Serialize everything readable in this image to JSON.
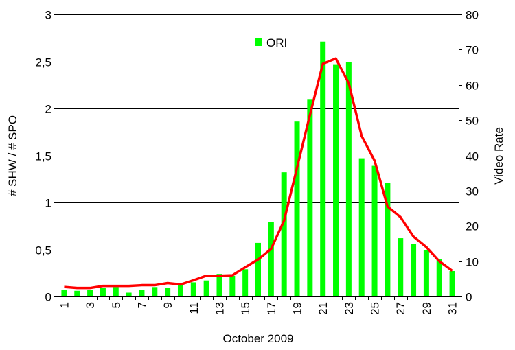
{
  "chart_data": {
    "type": "bar",
    "categories": [
      "1",
      "2",
      "3",
      "4",
      "5",
      "6",
      "7",
      "8",
      "9",
      "10",
      "11",
      "12",
      "13",
      "14",
      "15",
      "16",
      "17",
      "18",
      "19",
      "20",
      "21",
      "22",
      "23",
      "24",
      "25",
      "26",
      "27",
      "28",
      "29",
      "30",
      "31"
    ],
    "category_tick_labels": [
      "1",
      "3",
      "5",
      "7",
      "9",
      "11",
      "13",
      "15",
      "17",
      "19",
      "21",
      "23",
      "25",
      "27",
      "29",
      "31"
    ],
    "series": [
      {
        "name": "ORI",
        "type": "bar",
        "axis": "left",
        "color": "#00ff00",
        "values": [
          0.07,
          0.06,
          0.07,
          0.09,
          0.1,
          0.04,
          0.07,
          0.1,
          0.09,
          0.12,
          0.15,
          0.17,
          0.24,
          0.22,
          0.29,
          0.57,
          0.79,
          1.32,
          1.86,
          2.1,
          2.71,
          2.47,
          2.49,
          1.47,
          1.39,
          1.21,
          0.62,
          0.56,
          0.49,
          0.4,
          0.27
        ]
      },
      {
        "type": "line",
        "axis": "right",
        "color": "#ff0000",
        "values": [
          2.7,
          2.4,
          2.4,
          3.0,
          3.0,
          3.0,
          3.2,
          3.2,
          3.8,
          3.4,
          4.6,
          5.9,
          5.9,
          6.0,
          8.3,
          10.5,
          13.5,
          21.5,
          36.5,
          51.5,
          66.0,
          67.5,
          60.5,
          45.5,
          38.5,
          25.5,
          22.5,
          17.0,
          14.0,
          10.0,
          7.3
        ]
      }
    ],
    "xlabel": "October 2009",
    "ylabel": "# SHW / # SPO",
    "y2label": "Video Rate",
    "ylim": [
      0,
      3
    ],
    "y2lim": [
      0,
      80
    ],
    "yticks": [
      "0",
      "0,5",
      "1",
      "1,5",
      "2",
      "2,5",
      "3"
    ],
    "y2ticks": [
      "0",
      "10",
      "20",
      "30",
      "40",
      "50",
      "60",
      "70",
      "80"
    ],
    "grid": true,
    "legend": "top-center"
  }
}
